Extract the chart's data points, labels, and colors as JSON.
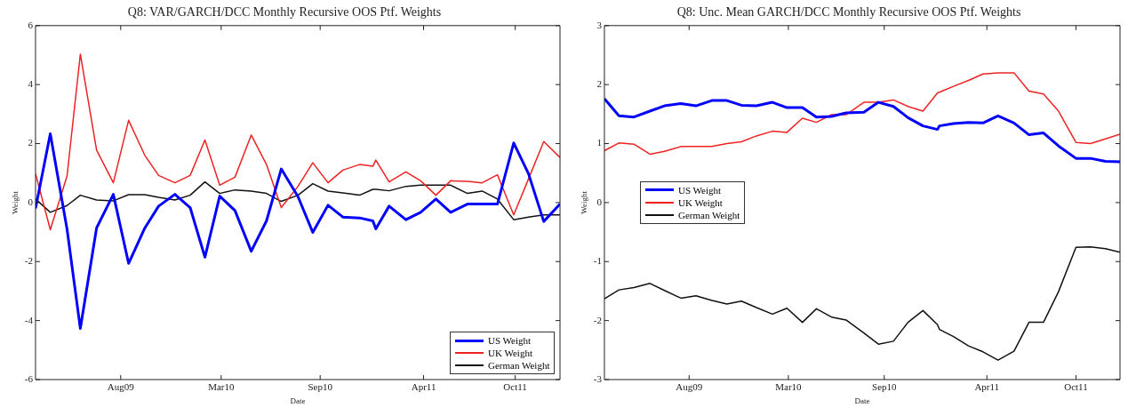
{
  "chart_data": [
    {
      "type": "line",
      "title": "Q8: VAR/GARCH/DCC Monthly Recursive OOS Ptf. Weights",
      "xlabel": "Date",
      "ylabel": "Weight",
      "legend": "bottom right",
      "grid": false,
      "x": [
        "2009-03-01",
        "2009-03-31",
        "2009-05-04",
        "2009-05-31",
        "2009-07-03",
        "2009-08-06",
        "2009-09-06",
        "2009-10-09",
        "2009-11-06",
        "2009-12-09",
        "2010-01-09",
        "2010-02-08",
        "2010-03-10",
        "2010-04-10",
        "2010-05-13",
        "2010-06-13",
        "2010-07-13",
        "2010-08-16",
        "2010-09-15",
        "2010-10-16",
        "2010-11-15",
        "2010-12-19",
        "2011-01-15",
        "2011-01-21",
        "2011-02-17",
        "2011-03-23",
        "2011-04-22",
        "2011-05-23",
        "2011-06-22",
        "2011-07-26",
        "2011-08-25",
        "2011-09-25",
        "2011-10-28",
        "2011-11-27",
        "2011-12-28",
        "2012-01-30"
      ],
      "xlim": [
        "2009-03-01",
        "2012-01-30"
      ],
      "xticks": [
        {
          "value": "2009-08-21",
          "label": "Aug09"
        },
        {
          "value": "2010-03-13",
          "label": "Mar10"
        },
        {
          "value": "2010-09-30",
          "label": "Sep10"
        },
        {
          "value": "2011-04-28",
          "label": "Apr11"
        },
        {
          "value": "2011-10-31",
          "label": "Oct11"
        }
      ],
      "ylim": [
        -6,
        6
      ],
      "yticks": [
        -6,
        -4,
        -2,
        0,
        2,
        4,
        6
      ],
      "series": [
        {
          "name": "US Weight",
          "color": "#0000ff",
          "values": [
            -0.2,
            2.33,
            -0.9,
            -4.27,
            -0.86,
            0.28,
            -2.06,
            -0.86,
            -0.12,
            0.28,
            -0.17,
            -1.85,
            0.22,
            -0.27,
            -1.65,
            -0.62,
            1.14,
            0.2,
            -1.01,
            -0.09,
            -0.49,
            -0.52,
            -0.62,
            -0.89,
            -0.12,
            -0.58,
            -0.33,
            0.12,
            -0.33,
            -0.05,
            -0.05,
            -0.05,
            2.02,
            0.98,
            -0.64,
            -0.05
          ]
        },
        {
          "name": "UK Weight",
          "color": "#ee2222",
          "values": [
            0.98,
            -0.92,
            0.9,
            5.03,
            1.78,
            0.67,
            2.79,
            1.6,
            0.92,
            0.67,
            0.92,
            2.12,
            0.59,
            0.86,
            2.29,
            1.29,
            -0.17,
            0.55,
            1.35,
            0.67,
            1.1,
            1.29,
            1.23,
            1.44,
            0.7,
            1.04,
            0.74,
            0.25,
            0.74,
            0.72,
            0.67,
            0.94,
            -0.42,
            0.8,
            2.07,
            1.53
          ]
        },
        {
          "name": "German Weight",
          "color": "#111111",
          "values": [
            0.12,
            -0.33,
            -0.1,
            0.25,
            0.09,
            0.06,
            0.27,
            0.27,
            0.18,
            0.09,
            0.25,
            0.7,
            0.31,
            0.43,
            0.39,
            0.31,
            0.04,
            0.25,
            0.64,
            0.39,
            0.33,
            0.25,
            0.45,
            0.45,
            0.4,
            0.55,
            0.59,
            0.59,
            0.59,
            0.31,
            0.39,
            0.12,
            -0.58,
            -0.49,
            -0.42,
            -0.42
          ]
        }
      ]
    },
    {
      "type": "line",
      "title": "Q8: Unc. Mean GARCH/DCC Monthly Recursive OOS Ptf. Weights",
      "xlabel": "Date",
      "ylabel": "Weight",
      "legend": "left",
      "grid": false,
      "x": [
        "2009-03-01",
        "2009-03-31",
        "2009-05-01",
        "2009-06-03",
        "2009-07-03",
        "2009-08-06",
        "2009-09-06",
        "2009-10-09",
        "2009-11-09",
        "2009-12-09",
        "2010-01-09",
        "2010-02-11",
        "2010-03-13",
        "2010-04-14",
        "2010-05-13",
        "2010-06-13",
        "2010-07-13",
        "2010-08-19",
        "2010-09-18",
        "2010-10-19",
        "2010-11-18",
        "2010-12-19",
        "2011-01-18",
        "2011-01-22",
        "2011-02-20",
        "2011-03-23",
        "2011-04-22",
        "2011-05-23",
        "2011-06-25",
        "2011-07-26",
        "2011-08-25",
        "2011-09-25",
        "2011-10-31",
        "2011-11-30",
        "2011-12-31",
        "2012-01-30"
      ],
      "xlim": [
        "2009-03-01",
        "2012-01-30"
      ],
      "xticks": [
        {
          "value": "2009-08-23",
          "label": "Aug09"
        },
        {
          "value": "2010-03-16",
          "label": "Mar10"
        },
        {
          "value": "2010-09-30",
          "label": "Sep10"
        },
        {
          "value": "2011-04-30",
          "label": "Apr11"
        },
        {
          "value": "2011-10-31",
          "label": "Oct11"
        }
      ],
      "ylim": [
        -3,
        3
      ],
      "yticks": [
        -3,
        -2,
        -1,
        0,
        1,
        2,
        3
      ],
      "series": [
        {
          "name": "US Weight",
          "color": "#0000ff",
          "values": [
            1.76,
            1.47,
            1.45,
            1.55,
            1.64,
            1.68,
            1.64,
            1.73,
            1.73,
            1.65,
            1.64,
            1.7,
            1.61,
            1.61,
            1.45,
            1.46,
            1.52,
            1.53,
            1.7,
            1.63,
            1.44,
            1.3,
            1.24,
            1.3,
            1.34,
            1.36,
            1.35,
            1.47,
            1.35,
            1.15,
            1.18,
            0.96,
            0.75,
            0.75,
            0.7,
            0.69
          ]
        },
        {
          "name": "UK Weight",
          "color": "#ee2222",
          "values": [
            0.88,
            1.01,
            0.99,
            0.82,
            0.87,
            0.95,
            0.95,
            0.95,
            1.0,
            1.03,
            1.13,
            1.21,
            1.19,
            1.43,
            1.36,
            1.49,
            1.49,
            1.7,
            1.7,
            1.74,
            1.63,
            1.55,
            1.86,
            1.87,
            1.97,
            2.07,
            2.18,
            2.2,
            2.2,
            1.89,
            1.84,
            1.55,
            1.02,
            1.0,
            1.08,
            1.16
          ]
        },
        {
          "name": "German Weight",
          "color": "#111111",
          "values": [
            -1.63,
            -1.48,
            -1.44,
            -1.37,
            -1.49,
            -1.62,
            -1.58,
            -1.66,
            -1.72,
            -1.67,
            -1.78,
            -1.89,
            -1.79,
            -2.03,
            -1.8,
            -1.94,
            -1.99,
            -2.21,
            -2.4,
            -2.35,
            -2.03,
            -1.83,
            -2.07,
            -2.15,
            -2.27,
            -2.43,
            -2.53,
            -2.67,
            -2.52,
            -2.03,
            -2.03,
            -1.51,
            -0.76,
            -0.75,
            -0.78,
            -0.84
          ]
        }
      ]
    }
  ]
}
